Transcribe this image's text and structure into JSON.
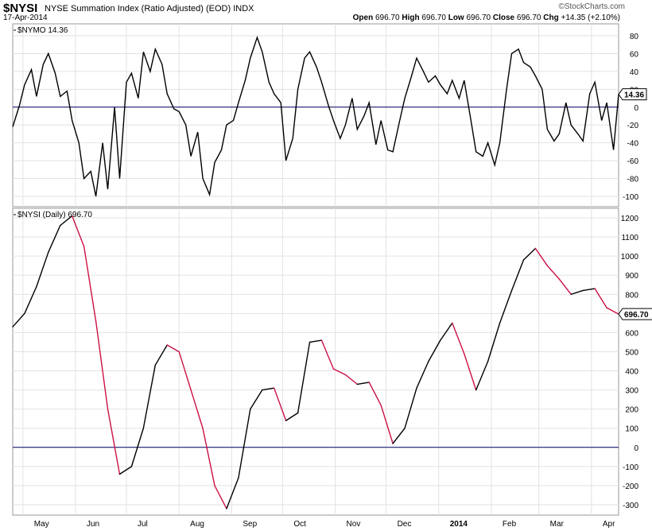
{
  "header": {
    "symbol": "$NYSI",
    "description": "NYSE Summation Index (Ratio Adjusted) (EOD)",
    "exchange": "INDX",
    "date": "17-Apr-2014",
    "brand": "©StockCharts.com",
    "ohlc": {
      "open_label": "Open",
      "open": "696.70",
      "high_label": "High",
      "high": "696.70",
      "low_label": "Low",
      "low": "696.70",
      "close_label": "Close",
      "close": "696.70",
      "chg_label": "Chg",
      "chg": "+14.35 (+2.10%)"
    }
  },
  "chart_data": [
    {
      "type": "line",
      "panel_label": "$NYMO 14.36",
      "last_value_label": "14.36",
      "ylim": [
        -110,
        90
      ],
      "yticks": [
        -100,
        -80,
        -60,
        -40,
        -20,
        0,
        20,
        40,
        60,
        80
      ],
      "reference_line": 0,
      "line_color": "#000000",
      "x_months": [
        "May",
        "Jun",
        "Jul",
        "Aug",
        "Sep",
        "Oct",
        "Nov",
        "Dec",
        "2014",
        "Feb",
        "Mar",
        "Apr"
      ],
      "x_start": "2013-04-25",
      "x_end": "2014-04-17",
      "points": [
        [
          "2013-04-25",
          -22
        ],
        [
          "2013-04-29",
          2
        ],
        [
          "2013-05-02",
          25
        ],
        [
          "2013-05-06",
          42
        ],
        [
          "2013-05-09",
          12
        ],
        [
          "2013-05-13",
          48
        ],
        [
          "2013-05-16",
          60
        ],
        [
          "2013-05-20",
          38
        ],
        [
          "2013-05-23",
          12
        ],
        [
          "2013-05-27",
          18
        ],
        [
          "2013-05-30",
          -15
        ],
        [
          "2013-06-03",
          -40
        ],
        [
          "2013-06-06",
          -80
        ],
        [
          "2013-06-10",
          -72
        ],
        [
          "2013-06-13",
          -100
        ],
        [
          "2013-06-17",
          -40
        ],
        [
          "2013-06-20",
          -92
        ],
        [
          "2013-06-24",
          0
        ],
        [
          "2013-06-27",
          -80
        ],
        [
          "2013-07-01",
          28
        ],
        [
          "2013-07-04",
          38
        ],
        [
          "2013-07-08",
          10
        ],
        [
          "2013-07-11",
          62
        ],
        [
          "2013-07-15",
          40
        ],
        [
          "2013-07-18",
          65
        ],
        [
          "2013-07-22",
          48
        ],
        [
          "2013-07-25",
          15
        ],
        [
          "2013-07-29",
          -2
        ],
        [
          "2013-08-01",
          -5
        ],
        [
          "2013-08-05",
          -20
        ],
        [
          "2013-08-08",
          -55
        ],
        [
          "2013-08-12",
          -28
        ],
        [
          "2013-08-15",
          -80
        ],
        [
          "2013-08-19",
          -98
        ],
        [
          "2013-08-22",
          -62
        ],
        [
          "2013-08-26",
          -48
        ],
        [
          "2013-08-29",
          -20
        ],
        [
          "2013-09-02",
          -15
        ],
        [
          "2013-09-05",
          5
        ],
        [
          "2013-09-09",
          30
        ],
        [
          "2013-09-12",
          55
        ],
        [
          "2013-09-16",
          78
        ],
        [
          "2013-09-19",
          62
        ],
        [
          "2013-09-23",
          28
        ],
        [
          "2013-09-26",
          15
        ],
        [
          "2013-09-30",
          5
        ],
        [
          "2013-10-03",
          -60
        ],
        [
          "2013-10-07",
          -35
        ],
        [
          "2013-10-10",
          20
        ],
        [
          "2013-10-14",
          55
        ],
        [
          "2013-10-17",
          62
        ],
        [
          "2013-10-21",
          45
        ],
        [
          "2013-10-24",
          28
        ],
        [
          "2013-10-28",
          2
        ],
        [
          "2013-10-31",
          -15
        ],
        [
          "2013-11-04",
          -35
        ],
        [
          "2013-11-07",
          -20
        ],
        [
          "2013-11-11",
          10
        ],
        [
          "2013-11-14",
          -25
        ],
        [
          "2013-11-18",
          -10
        ],
        [
          "2013-11-21",
          5
        ],
        [
          "2013-11-25",
          -42
        ],
        [
          "2013-11-28",
          -15
        ],
        [
          "2013-12-02",
          -48
        ],
        [
          "2013-12-05",
          -50
        ],
        [
          "2013-12-09",
          -15
        ],
        [
          "2013-12-12",
          10
        ],
        [
          "2013-12-16",
          35
        ],
        [
          "2013-12-19",
          55
        ],
        [
          "2013-12-23",
          40
        ],
        [
          "2013-12-26",
          28
        ],
        [
          "2013-12-30",
          35
        ],
        [
          "2014-01-02",
          25
        ],
        [
          "2014-01-06",
          15
        ],
        [
          "2014-01-09",
          30
        ],
        [
          "2014-01-13",
          10
        ],
        [
          "2014-01-16",
          30
        ],
        [
          "2014-01-20",
          -15
        ],
        [
          "2014-01-23",
          -50
        ],
        [
          "2014-01-27",
          -55
        ],
        [
          "2014-01-30",
          -40
        ],
        [
          "2014-02-03",
          -65
        ],
        [
          "2014-02-06",
          -40
        ],
        [
          "2014-02-10",
          20
        ],
        [
          "2014-02-13",
          60
        ],
        [
          "2014-02-17",
          65
        ],
        [
          "2014-02-20",
          50
        ],
        [
          "2014-02-24",
          45
        ],
        [
          "2014-02-27",
          35
        ],
        [
          "2014-03-03",
          20
        ],
        [
          "2014-03-06",
          -25
        ],
        [
          "2014-03-10",
          -38
        ],
        [
          "2014-03-13",
          -30
        ],
        [
          "2014-03-17",
          5
        ],
        [
          "2014-03-20",
          -20
        ],
        [
          "2014-03-24",
          -30
        ],
        [
          "2014-03-27",
          -38
        ],
        [
          "2014-03-31",
          15
        ],
        [
          "2014-04-03",
          28
        ],
        [
          "2014-04-07",
          -15
        ],
        [
          "2014-04-10",
          5
        ],
        [
          "2014-04-14",
          -48
        ],
        [
          "2014-04-17",
          14.36
        ]
      ]
    },
    {
      "type": "line",
      "panel_label": "$NYSI (Daily) 696.70",
      "last_value_label": "696.70",
      "ylim": [
        -350,
        1250
      ],
      "yticks": [
        -300,
        -200,
        -100,
        0,
        100,
        200,
        300,
        400,
        500,
        600,
        700,
        800,
        900,
        1000,
        1100,
        1200
      ],
      "reference_line": 0,
      "rising_color": "#000000",
      "falling_color": "#cc1144",
      "x_months": [
        "May",
        "Jun",
        "Jul",
        "Aug",
        "Sep",
        "Oct",
        "Nov",
        "Dec",
        "2014",
        "Feb",
        "Mar",
        "Apr"
      ],
      "x_start": "2013-04-25",
      "x_end": "2014-04-17",
      "points": [
        [
          "2013-04-25",
          630
        ],
        [
          "2013-05-02",
          700
        ],
        [
          "2013-05-09",
          840
        ],
        [
          "2013-05-16",
          1020
        ],
        [
          "2013-05-23",
          1160
        ],
        [
          "2013-05-30",
          1210
        ],
        [
          "2013-06-06",
          1050
        ],
        [
          "2013-06-13",
          660
        ],
        [
          "2013-06-20",
          200
        ],
        [
          "2013-06-27",
          -140
        ],
        [
          "2013-07-04",
          -100
        ],
        [
          "2013-07-11",
          100
        ],
        [
          "2013-07-18",
          430
        ],
        [
          "2013-07-25",
          535
        ],
        [
          "2013-08-01",
          500
        ],
        [
          "2013-08-08",
          300
        ],
        [
          "2013-08-15",
          100
        ],
        [
          "2013-08-22",
          -200
        ],
        [
          "2013-08-29",
          -320
        ],
        [
          "2013-09-05",
          -160
        ],
        [
          "2013-09-12",
          200
        ],
        [
          "2013-09-19",
          300
        ],
        [
          "2013-09-26",
          310
        ],
        [
          "2013-10-03",
          140
        ],
        [
          "2013-10-10",
          180
        ],
        [
          "2013-10-17",
          550
        ],
        [
          "2013-10-24",
          560
        ],
        [
          "2013-10-31",
          410
        ],
        [
          "2013-11-07",
          380
        ],
        [
          "2013-11-14",
          330
        ],
        [
          "2013-11-21",
          340
        ],
        [
          "2013-11-28",
          220
        ],
        [
          "2013-12-05",
          20
        ],
        [
          "2013-12-12",
          100
        ],
        [
          "2013-12-19",
          310
        ],
        [
          "2013-12-26",
          450
        ],
        [
          "2014-01-02",
          560
        ],
        [
          "2014-01-09",
          650
        ],
        [
          "2014-01-16",
          490
        ],
        [
          "2014-01-23",
          300
        ],
        [
          "2014-01-30",
          450
        ],
        [
          "2014-02-06",
          650
        ],
        [
          "2014-02-13",
          820
        ],
        [
          "2014-02-20",
          980
        ],
        [
          "2014-02-27",
          1040
        ],
        [
          "2014-03-06",
          950
        ],
        [
          "2014-03-13",
          880
        ],
        [
          "2014-03-20",
          800
        ],
        [
          "2014-03-27",
          820
        ],
        [
          "2014-04-03",
          830
        ],
        [
          "2014-04-10",
          730
        ],
        [
          "2014-04-17",
          696.7
        ]
      ]
    }
  ]
}
